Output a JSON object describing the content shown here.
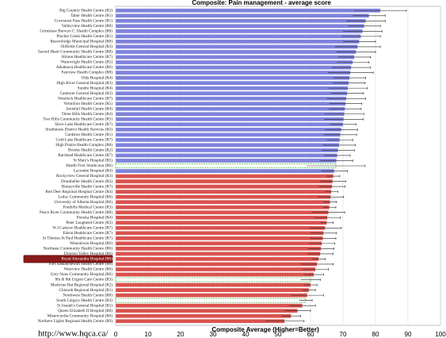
{
  "chart_data": {
    "type": "barh",
    "title": "Composite: Pain management - average score",
    "xlabel": "Composite Average (Higher=Better)",
    "footer": "http://www.hqca.ca/",
    "categories": [
      "Big Country Health Centre (R2)",
      "Taber Health Centre (R1)",
      "Crowsnest Pass Health Centre (R1)",
      "Valleyview Health Centre (R8)",
      "Grimshaw Berwyn C. Health Complex (R8)",
      "Pincher Creek Health Centre (R1)",
      "Beaverlodge Municipal Hospital (R8)",
      "Oilfields General Hospital (R3)",
      "Sacred Heart Community Health Centre (R8)",
      "Hinton Healthcare Centre (R7)",
      "Wainwright Health Centre (R5)",
      "Athabasca Healthcare Centre (R6)",
      "Fairview Health Complex (R8)",
      "Olds Hospital (R4)",
      "High River General Hospital (R3)",
      "Sundre Hospital (R4)",
      "Canmore General Hospital (R3)",
      "Westlock Healthcare Centre (R7)",
      "Vermilion Health Centre (R5)",
      "Innisfail Health Centre (R4)",
      "Three Hills Health Centre (R4)",
      "Two Hills Community Health Centre (R5)",
      "Slave Lake Healthcare Centre (R7)",
      "Strathmore District Health Services (R3)",
      "Cardston Health Centre (R1)",
      "Cold Lake Healthcare Centre (R7)",
      "High Prairie Health Complex (R8)",
      "Brooks Health Centre (R2)",
      "Barrhead Healthcare Centre (R7)",
      "St Mary's Hospital (R5)",
      "Health First Strathcona (R6)",
      "Lacombe Hospital (R4)",
      "Rockyview General Hospital (R3)",
      "Drumheller Health Centre (R3)",
      "Bonnyville Health Centre (R7)",
      "Red Deer Regional Hospital Centre (R4)",
      "Leduc Community Hospital (R6)",
      "University of Alberta Hospital (R6)",
      "Foothills Medical Centre (R3)",
      "Peace River Community Health Centre (R8)",
      "Ponoka Hospital (R4)",
      "Peter Lougheed Centre (R3)",
      "W.J.Cadzow Healthcare Centre (R7)",
      "Edson Healthcare Centre (R7)",
      "St Therese-St Paul Healthcare Centre (R7)",
      "Wetaskiwin Hospital (R6)",
      "Northeast Community Health Centre (R6)",
      "Drayton Valley Hospital (R6)",
      "Royal Alexandra Hospital (R6)",
      "Fort Saskatchewan Health Centre (R6)",
      "Westview Health Centre (R6)",
      "Grey Nuns Community Hospital (R6)",
      "8th & 8th Urgent Care Centre (R3)",
      "Medicine Hat Regional Hospital (R2)",
      "Chinook Regional Hospital (R1)",
      "Northwest Health Centre (R8)",
      "South Calgary Health Centre (R3)",
      "St Joseph's General Hospital (R5)",
      "Queen Elizabeth II Hospital (R8)",
      "Misericordia Community Hospital (R6)",
      "Northern Lights Regional Health Centre (R9)"
    ],
    "values": [
      81.5,
      78,
      77,
      76.5,
      76,
      75.5,
      75,
      74.5,
      74,
      73.5,
      73,
      72.5,
      72.3,
      72,
      71.8,
      71.5,
      71.3,
      71,
      70.8,
      70.6,
      70.4,
      70.2,
      70,
      69.5,
      69.2,
      69,
      68.8,
      68.5,
      68.2,
      68,
      67.8,
      67.3,
      67,
      66.8,
      66.6,
      66.4,
      66.2,
      66,
      65.8,
      65.5,
      65.2,
      65,
      64.5,
      64,
      63.8,
      63.5,
      63.2,
      63,
      62.5,
      62,
      61.5,
      61,
      60,
      60,
      59.5,
      59,
      58.5,
      57.5,
      56,
      54,
      52
    ],
    "errors": [
      8,
      5,
      6,
      5,
      6,
      6,
      5,
      7,
      6,
      5,
      5,
      6,
      7,
      5,
      5,
      6,
      5,
      6,
      5,
      5,
      6,
      6,
      4,
      5,
      5,
      4,
      5,
      5,
      4,
      5,
      9,
      4,
      2,
      4,
      4,
      2,
      4,
      2,
      2,
      5,
      4,
      2,
      5,
      4,
      4,
      4,
      4,
      4,
      2,
      5,
      4,
      3,
      3,
      2,
      2,
      5,
      2,
      4,
      4,
      3,
      6
    ],
    "bar_colors": [
      "#7f83dc",
      "#7f83dc",
      "#7f83dc",
      "#7f83dc",
      "#7f83dc",
      "#7f83dc",
      "#7f83dc",
      "#7f83dc",
      "#7f83dc",
      "#7f83dc",
      "#7f83dc",
      "#7f83dc",
      "#7f83dc",
      "#7f83dc",
      "#7f83dc",
      "#7f83dc",
      "#7f83dc",
      "#7f83dc",
      "#7f83dc",
      "#7f83dc",
      "#7f83dc",
      "#7f83dc",
      "#7f83dc",
      "#7f83dc",
      "#7f83dc",
      "#7f83dc",
      "#7f83dc",
      "#7f83dc",
      "#7f83dc",
      "#7f83dc",
      "#5cc25c",
      "#7f83dc",
      "#d9534f",
      "#d9534f",
      "#d9534f",
      "#d9534f",
      "#d9534f",
      "#d9534f",
      "#d9534f",
      "#d9534f",
      "#d9534f",
      "#d9534f",
      "#d9534f",
      "#d9534f",
      "#d9534f",
      "#d9534f",
      "#d9534f",
      "#d9534f",
      "#d9534f",
      "#d9534f",
      "#d9534f",
      "#d9534f",
      "#5cc25c",
      "#d9534f",
      "#d9534f",
      "#d9534f",
      "#5cc25c",
      "#d9534f",
      "#d9534f",
      "#d9534f",
      "#d9534f"
    ],
    "highlight_index": 48,
    "xlim": [
      0,
      100
    ],
    "xticks": [
      0,
      10,
      20,
      30,
      40,
      50,
      60,
      70,
      80,
      90,
      100
    ],
    "grid": true
  }
}
